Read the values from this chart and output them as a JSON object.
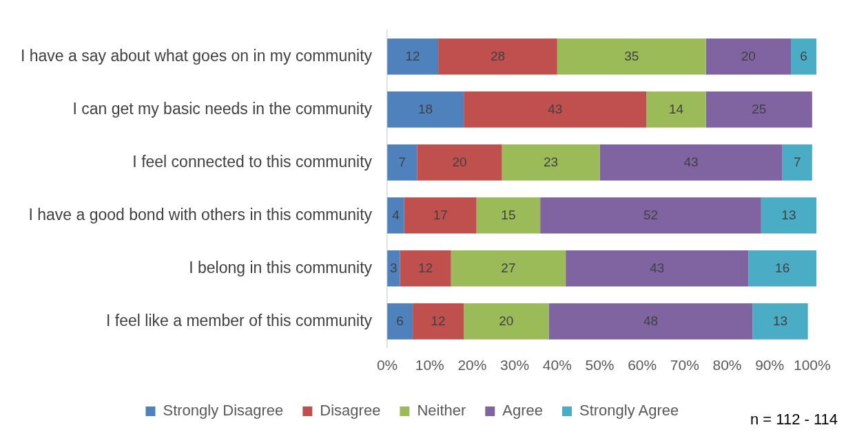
{
  "chart_data": {
    "type": "bar",
    "orientation": "horizontal",
    "stacked": true,
    "categories": [
      "I have a say about what goes on in my community",
      "I can get my basic needs in the community",
      "I feel connected to this community",
      "I have a good bond with others in this community",
      "I belong in this community",
      "I feel like a member of this community"
    ],
    "series": [
      {
        "name": "Strongly Disagree",
        "color": "#4f81bd",
        "values": [
          12,
          18,
          7,
          4,
          3,
          6
        ]
      },
      {
        "name": "Disagree",
        "color": "#c0504d",
        "values": [
          28,
          43,
          20,
          17,
          12,
          12
        ]
      },
      {
        "name": "Neither",
        "color": "#9bbb59",
        "values": [
          35,
          14,
          23,
          15,
          27,
          20
        ]
      },
      {
        "name": "Agree",
        "color": "#8064a2",
        "values": [
          20,
          25,
          43,
          52,
          43,
          48
        ]
      },
      {
        "name": "Strongly Agree",
        "color": "#4bacc6",
        "values": [
          6,
          null,
          7,
          13,
          16,
          13
        ]
      }
    ],
    "xlim": [
      0,
      101
    ],
    "xticks": [
      {
        "value": 0,
        "label": "0%"
      },
      {
        "value": 10,
        "label": "10%"
      },
      {
        "value": 20,
        "label": "20%"
      },
      {
        "value": 30,
        "label": "30%"
      },
      {
        "value": 40,
        "label": "40%"
      },
      {
        "value": 50,
        "label": "50%"
      },
      {
        "value": 60,
        "label": "60%"
      },
      {
        "value": 70,
        "label": "70%"
      },
      {
        "value": 80,
        "label": "80%"
      },
      {
        "value": 90,
        "label": "90%"
      },
      {
        "value": 100,
        "label": "100%"
      }
    ],
    "grid": false,
    "legend": "bottom",
    "data_labels": true,
    "annotations": [
      "n = 112 - 114"
    ]
  }
}
